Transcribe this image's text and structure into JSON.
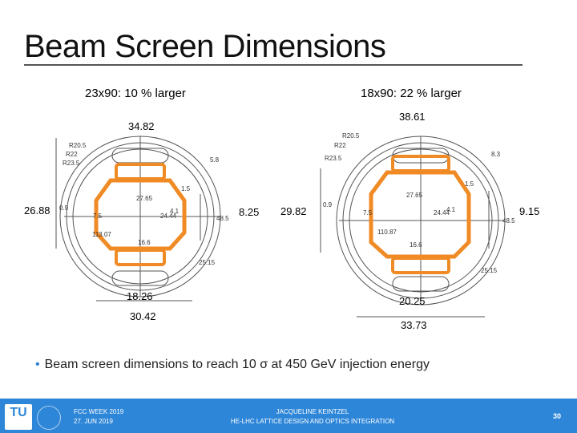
{
  "slide": {
    "title": "Beam Screen Dimensions",
    "left_subtitle": "23x90: 10 % larger",
    "right_subtitle": "18x90: 22 % larger",
    "bullet": "Beam screen dimensions to reach 10 σ at 450 GeV injection energy"
  },
  "left_diagram": {
    "top_width": "34.82",
    "left_height": "26.88",
    "right_height": "8.25",
    "bottom_inner": "18.26",
    "bottom_outer": "30.42",
    "labels": {
      "r1": "R20.5",
      "r2": "R22",
      "r3": "R23.5",
      "w1": "27.65",
      "w2": "24.44",
      "w3": "4.1",
      "w4": "16.6",
      "w5": "0.9",
      "w6": "7.5",
      "w7": "5.8",
      "w8": "48.5",
      "w9": "25.15",
      "w10": "113.07",
      "w11": "1.5"
    }
  },
  "right_diagram": {
    "top_width": "38.61",
    "left_height": "29.82",
    "right_height": "9.15",
    "bottom_inner": "20.25",
    "bottom_outer": "33.73",
    "labels": {
      "r1": "R20.5",
      "r2": "R22",
      "r3": "R23.5",
      "w1": "27.65",
      "w2": "24.44",
      "w3": "4.1",
      "w4": "16.6",
      "w5": "0.9",
      "w6": "7.5",
      "w7": "8.3",
      "w8": "48.5",
      "w9": "25.15",
      "w10": "110.87",
      "w11": "1.5"
    }
  },
  "footer": {
    "logo": "TU",
    "event": "FCC WEEK 2019",
    "date": "27. JUN 2019",
    "author": "JACQUELINE KEINTZEL",
    "talk": "HE-LHC LATTICE DESIGN AND OPTICS INTEGRATION",
    "page": "30"
  },
  "colors": {
    "accent": "#2e86d8",
    "highlight": "#f08a24",
    "drawing": "#444444"
  }
}
